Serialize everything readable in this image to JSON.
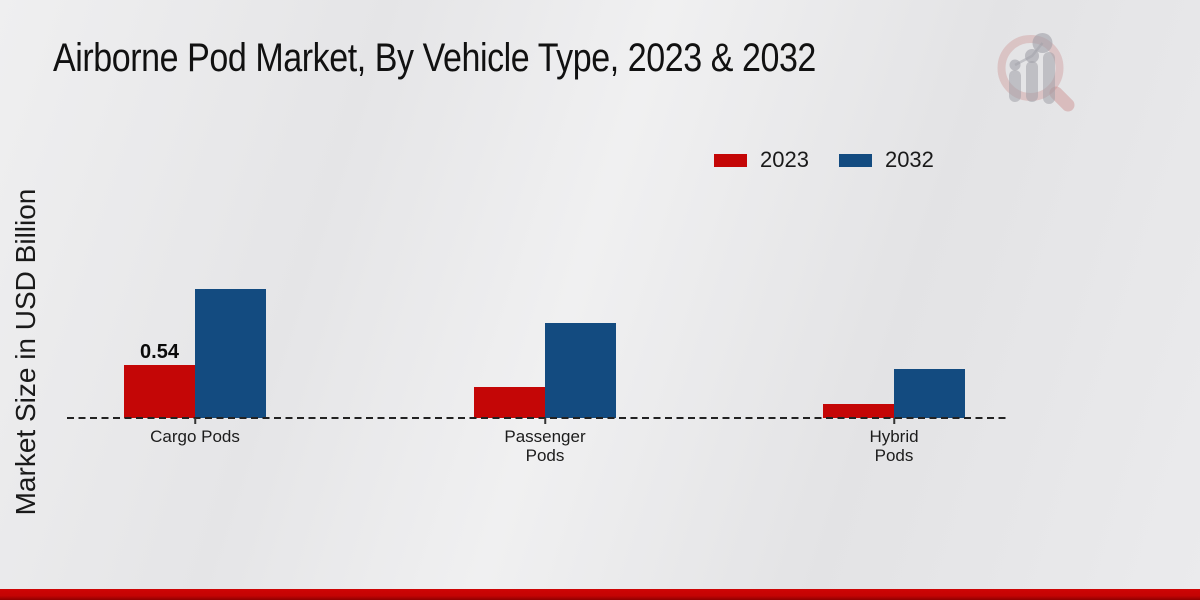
{
  "chart_data": {
    "type": "bar",
    "title": "Airborne Pod Market, By Vehicle Type, 2023 & 2032",
    "xlabel": "",
    "ylabel": "Market Size in USD Billion",
    "categories": [
      "Cargo Pods",
      "Passenger Pods",
      "Hybrid Pods"
    ],
    "categories_display": [
      "Cargo Pods",
      "Passenger\nPods",
      "Hybrid\nPods"
    ],
    "series": [
      {
        "name": "2023",
        "color": "#c40606",
        "values": [
          0.54,
          0.32,
          0.14
        ]
      },
      {
        "name": "2032",
        "color": "#134b80",
        "values": [
          1.32,
          0.97,
          0.5
        ]
      }
    ],
    "data_labels": [
      {
        "series_index": 0,
        "category_index": 0,
        "text": "0.54"
      }
    ],
    "ylim": [
      0,
      1.6
    ],
    "grid": false,
    "legend_position": "upper-right",
    "baseline_style": "dashed"
  },
  "icons": {
    "logo": "magnifier-bar-chart-watermark"
  },
  "colors": {
    "background": "#e9e9eb",
    "series_2023": "#c40606",
    "series_2032": "#134b80",
    "baseline": "#222222",
    "footer_accent": "#c30404",
    "logo_ring": "rgba(200,130,130,0.33)",
    "logo_bars": "rgba(160,160,168,0.55)"
  }
}
